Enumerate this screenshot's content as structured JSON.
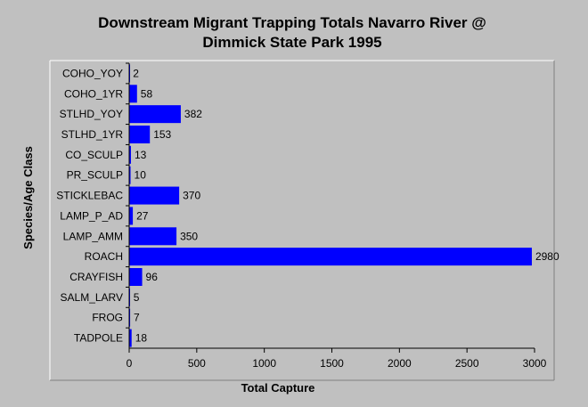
{
  "chart_data": {
    "type": "bar",
    "orientation": "horizontal",
    "title_lines": [
      "Downstream Migrant Trapping Totals Navarro River @",
      "Dimmick State Park 1995"
    ],
    "xlabel": "Total Capture",
    "ylabel": "Species/Age Class",
    "categories": [
      "COHO_YOY",
      "COHO_1YR",
      "STLHD_YOY",
      "STLHD_1YR",
      "CO_SCULP",
      "PR_SCULP",
      "STICKLEBAC",
      "LAMP_P_AD",
      "LAMP_AMM",
      "ROACH",
      "CRAYFISH",
      "SALM_LARV",
      "FROG",
      "TADPOLE"
    ],
    "values": [
      2,
      58,
      382,
      153,
      13,
      10,
      370,
      27,
      350,
      2980,
      96,
      5,
      7,
      18
    ],
    "data_labels": [
      "2",
      "58",
      "382",
      "153",
      "13",
      "10",
      "370",
      "27",
      "350",
      "2980",
      "96",
      "5",
      "7",
      "18"
    ],
    "xlim": [
      0,
      3000
    ],
    "xticks": [
      0,
      500,
      1000,
      1500,
      2000,
      2500,
      3000
    ],
    "xtick_labels": [
      "0",
      "500",
      "1000",
      "1500",
      "2000",
      "2500",
      "3000"
    ],
    "grid": false,
    "legend": "none",
    "colors": {
      "bar": "#0000ff",
      "background": "#c0c0c0",
      "plot_area": "#c0c0c0",
      "axis": "#000000"
    }
  }
}
